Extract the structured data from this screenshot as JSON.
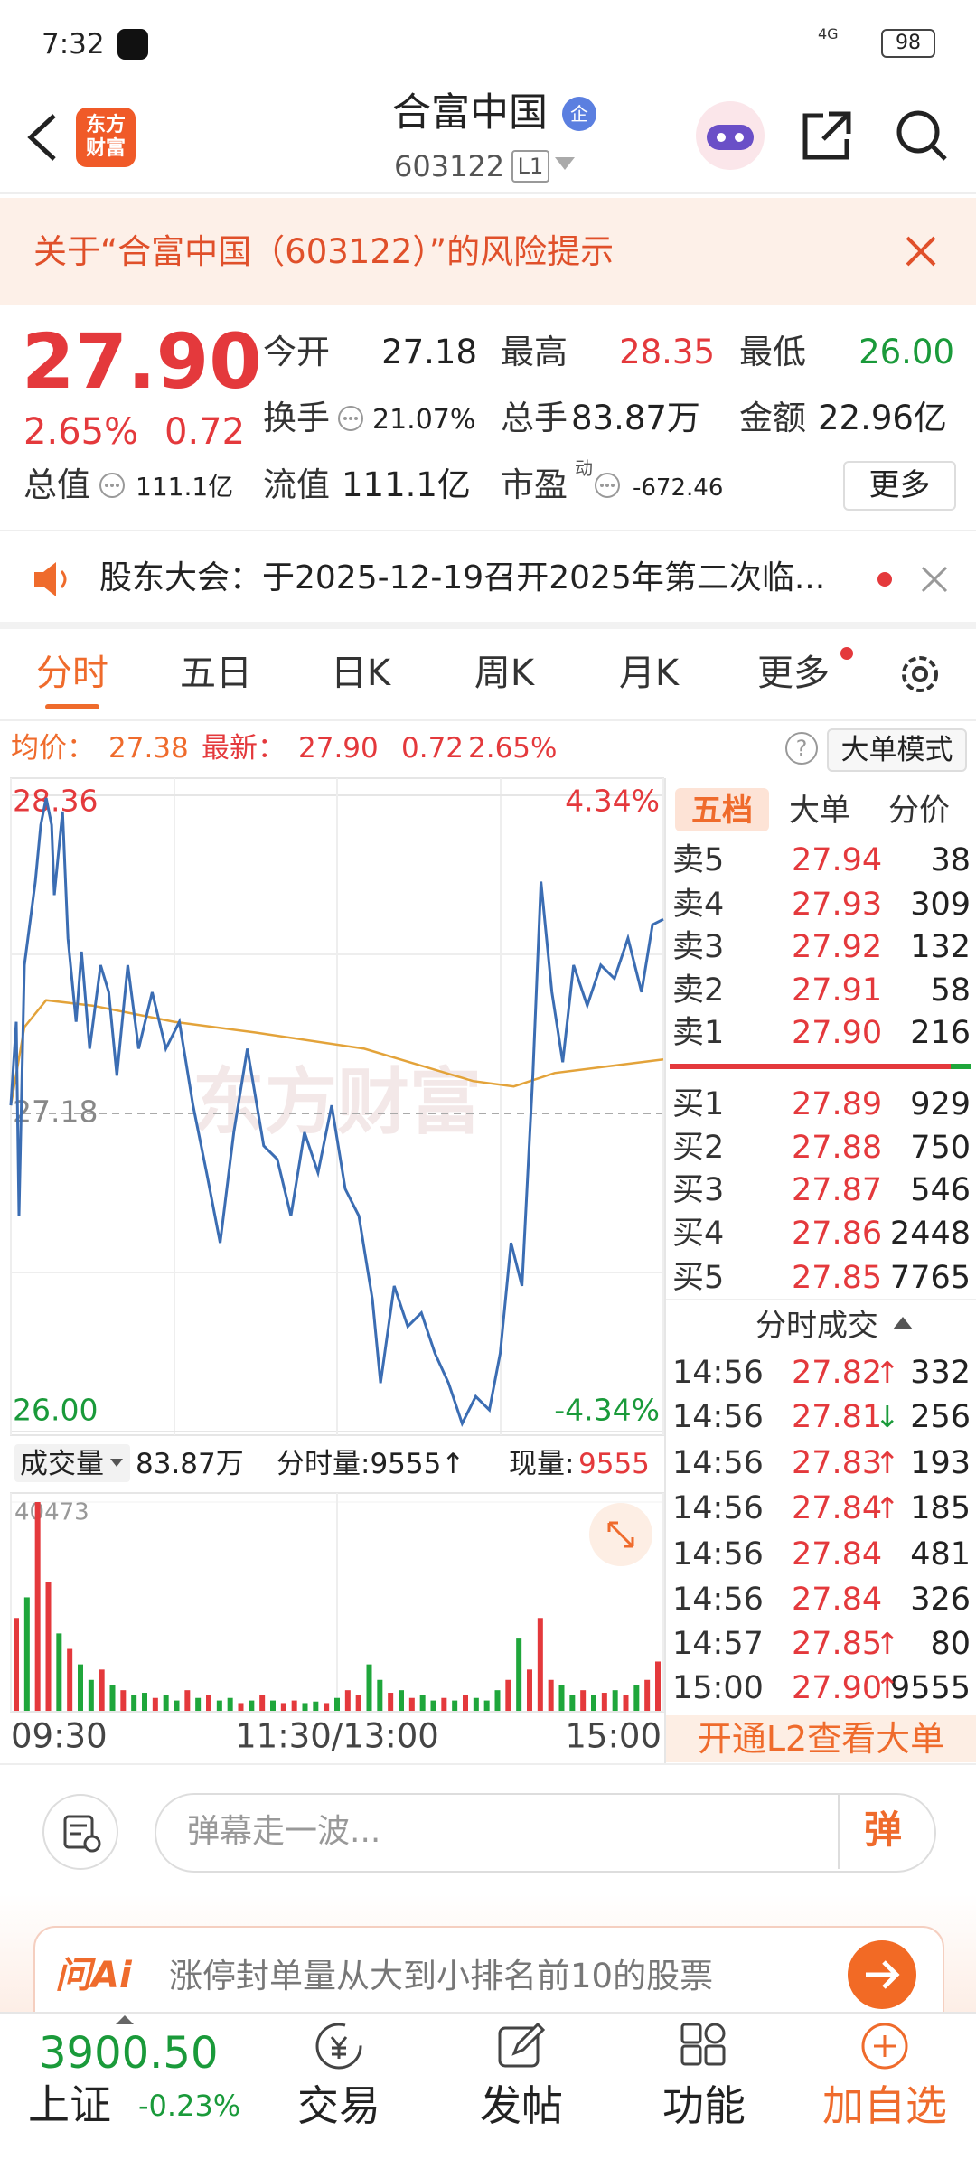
{
  "status_bar": {
    "time": "7:32",
    "network": "4G",
    "battery": "98"
  },
  "header": {
    "logo": [
      "东方",
      "财富"
    ],
    "title": "合富中国",
    "badge": "企",
    "code": "603122",
    "level": "L1"
  },
  "risk_banner": "关于“合富中国（603122）”的风险提示",
  "quote": {
    "price": "27.90",
    "change_pct": "2.65%",
    "change": "0.72",
    "stats": [
      {
        "label": "今开",
        "value": "27.18"
      },
      {
        "label": "最高",
        "value": "28.35"
      },
      {
        "label": "最低",
        "value": "26.00"
      },
      {
        "label": "换手",
        "value": "21.07%"
      },
      {
        "label": "总手",
        "value": "83.87万"
      },
      {
        "label": "金额",
        "value": "22.96亿"
      },
      {
        "label": "总值",
        "value": "111.1亿"
      },
      {
        "label": "流值",
        "value": "111.1亿"
      },
      {
        "label": "市盈",
        "sup": "动",
        "value": "-672.46"
      }
    ],
    "more": "更多"
  },
  "notice": "股东大会：于2025-12-19召开2025年第二次临...",
  "tabs": [
    "分时",
    "五日",
    "日K",
    "周K",
    "月K",
    "更多"
  ],
  "info_line": {
    "avg_label": "均价：",
    "avg": "27.38",
    "latest_label": "最新：",
    "latest": "27.90",
    "change": "0.72",
    "change_pct": "2.65%",
    "help": "?",
    "mode": "大单模式"
  },
  "chart_data": [
    {
      "type": "line",
      "watermark": "东方财富",
      "x": [
        0,
        2,
        3,
        5,
        9,
        11,
        13,
        15,
        16,
        19,
        21,
        24,
        26,
        29,
        33,
        36,
        39,
        43,
        47,
        52,
        57,
        62,
        67,
        72,
        77,
        82,
        87,
        93,
        98,
        103,
        108,
        113,
        118,
        123,
        128,
        133,
        136,
        141,
        146,
        151,
        156,
        161,
        166,
        171,
        176,
        180,
        184,
        188,
        192,
        195,
        199,
        203,
        207,
        212,
        217,
        222,
        227,
        232,
        236,
        240
      ],
      "values": [
        27.21,
        27.52,
        26.8,
        27.73,
        28.04,
        28.25,
        28.35,
        28.25,
        27.99,
        28.3,
        27.83,
        27.52,
        27.78,
        27.42,
        27.73,
        27.63,
        27.32,
        27.73,
        27.42,
        27.63,
        27.42,
        27.52,
        27.21,
        26.96,
        26.7,
        27.11,
        27.42,
        27.06,
        27.01,
        26.8,
        27.11,
        26.96,
        27.21,
        26.9,
        26.8,
        26.49,
        26.18,
        26.54,
        26.39,
        26.44,
        26.29,
        26.18,
        26.03,
        26.13,
        26.08,
        26.29,
        26.7,
        26.54,
        27.32,
        28.04,
        27.63,
        27.37,
        27.73,
        27.58,
        27.73,
        27.68,
        27.83,
        27.63,
        27.88,
        27.9
      ],
      "color": "#3b6db3",
      "average": {
        "x": [
          0,
          5,
          13,
          30,
          60,
          90,
          130,
          150,
          170,
          185,
          200,
          240
        ],
        "values": [
          27.21,
          27.5,
          27.6,
          27.58,
          27.52,
          27.48,
          27.42,
          27.36,
          27.3,
          27.28,
          27.33,
          27.38
        ],
        "color": "#e3a33a"
      },
      "xlim": [
        0,
        240
      ],
      "ylim": [
        26.0,
        28.36
      ],
      "yticks": [
        {
          "value": 28.36,
          "label": "28.36"
        },
        {
          "value": 27.18,
          "label": "27.18"
        },
        {
          "value": 26.0,
          "label": "26.00"
        }
      ],
      "y2lim": [
        -4.34,
        4.34
      ],
      "y2ticks": [
        {
          "value": 4.34,
          "label": "4.34%"
        },
        {
          "value": -4.34,
          "label": "-4.34%"
        }
      ],
      "grid": true
    },
    {
      "type": "bar",
      "header": {
        "label": "成交量",
        "total": "83.87万",
        "minute_volume": "分时量:9555↑",
        "current_label": "现量:",
        "current": "9555"
      },
      "x": [
        0,
        4,
        8,
        12,
        16,
        20,
        24,
        28,
        32,
        36,
        40,
        44,
        48,
        52,
        56,
        60,
        64,
        68,
        72,
        76,
        80,
        84,
        88,
        92,
        96,
        100,
        104,
        108,
        112,
        116,
        120,
        124,
        128,
        132,
        136,
        140,
        144,
        148,
        152,
        156,
        160,
        164,
        168,
        172,
        176,
        180,
        184,
        188,
        192,
        196,
        200,
        204,
        208,
        212,
        216,
        220,
        224,
        228,
        232,
        236,
        240
      ],
      "values": [
        18000,
        22000,
        40473,
        25000,
        15000,
        12000,
        9000,
        6000,
        8000,
        5000,
        4000,
        3000,
        3500,
        2500,
        3000,
        2000,
        4000,
        2500,
        3000,
        2000,
        2500,
        1500,
        2000,
        3000,
        2000,
        1500,
        2000,
        1500,
        1800,
        1500,
        2500,
        4000,
        3000,
        9000,
        6000,
        3500,
        4000,
        2500,
        3000,
        2000,
        2500,
        2000,
        3000,
        2500,
        2000,
        4000,
        6000,
        14000,
        8000,
        18000,
        6000,
        5000,
        3000,
        4000,
        3000,
        3500,
        4000,
        3000,
        5000,
        6000,
        9555
      ],
      "colors": [
        "#e4393c",
        "#1fa63b",
        "#e4393c",
        "#e4393c",
        "#1fa63b",
        "#e4393c",
        "#1fa63b",
        "#1fa63b",
        "#e4393c",
        "#1fa63b",
        "#e4393c",
        "#1fa63b",
        "#1fa63b",
        "#e4393c",
        "#1fa63b",
        "#1fa63b",
        "#e4393c",
        "#1fa63b",
        "#e4393c",
        "#1fa63b",
        "#1fa63b",
        "#e4393c",
        "#1fa63b",
        "#e4393c",
        "#1fa63b",
        "#e4393c",
        "#e4393c",
        "#1fa63b",
        "#1fa63b",
        "#e4393c",
        "#1fa63b",
        "#e4393c",
        "#e4393c",
        "#1fa63b",
        "#1fa63b",
        "#e4393c",
        "#1fa63b",
        "#e4393c",
        "#1fa63b",
        "#1fa63b",
        "#e4393c",
        "#1fa63b",
        "#e4393c",
        "#1fa63b",
        "#1fa63b",
        "#1fa63b",
        "#e4393c",
        "#1fa63b",
        "#e4393c",
        "#e4393c",
        "#e4393c",
        "#1fa63b",
        "#1fa63b",
        "#e4393c",
        "#1fa63b",
        "#e4393c",
        "#1fa63b",
        "#e4393c",
        "#1fa63b",
        "#e4393c",
        "#e4393c"
      ],
      "xlim": [
        0,
        240
      ],
      "ylim": [
        0,
        40473
      ],
      "yticks": [
        40473
      ],
      "xticks": [
        {
          "value": 0,
          "label": "09:30"
        },
        {
          "value": 120,
          "label": "11:30/13:00"
        },
        {
          "value": 240,
          "label": "15:00"
        }
      ]
    }
  ],
  "order_book": {
    "tabs": [
      "五档",
      "大单",
      "分价"
    ],
    "asks": [
      {
        "label": "卖5",
        "price": "27.94",
        "volume": "38"
      },
      {
        "label": "卖4",
        "price": "27.93",
        "volume": "309"
      },
      {
        "label": "卖3",
        "price": "27.92",
        "volume": "132"
      },
      {
        "label": "卖2",
        "price": "27.91",
        "volume": "58"
      },
      {
        "label": "卖1",
        "price": "27.90",
        "volume": "216"
      }
    ],
    "bids": [
      {
        "label": "买1",
        "price": "27.89",
        "volume": "929"
      },
      {
        "label": "买2",
        "price": "27.88",
        "volume": "750"
      },
      {
        "label": "买3",
        "price": "27.87",
        "volume": "546"
      },
      {
        "label": "买4",
        "price": "27.86",
        "volume": "2448"
      },
      {
        "label": "买5",
        "price": "27.85",
        "volume": "7765"
      }
    ],
    "trades_title": "分时成交",
    "trades": [
      {
        "time": "14:56",
        "price": "27.82",
        "arrow": "↑",
        "volume": "332"
      },
      {
        "time": "14:56",
        "price": "27.81",
        "arrow": "↓",
        "volume": "256"
      },
      {
        "time": "14:56",
        "price": "27.83",
        "arrow": "↑",
        "volume": "193"
      },
      {
        "time": "14:56",
        "price": "27.84",
        "arrow": "↑",
        "volume": "185"
      },
      {
        "time": "14:56",
        "price": "27.84",
        "volume": "481"
      },
      {
        "time": "14:56",
        "price": "27.84",
        "volume": "326"
      },
      {
        "time": "14:57",
        "price": "27.85",
        "arrow": "↑",
        "volume": "80"
      },
      {
        "time": "15:00",
        "price": "27.90",
        "arrow": "↑",
        "volume": "9555"
      }
    ],
    "l2_promo": "开通L2查看大单"
  },
  "comment_bar": {
    "placeholder": "弹幕走一波...",
    "button": "弹"
  },
  "ai_banner": {
    "logo": "问Ai",
    "text": "涨停封单量从大到小排名前10的股票"
  },
  "bottom_nav": {
    "index_value": "3900.50",
    "index_name": "上证",
    "index_change": "-0.23%",
    "items": [
      "交易",
      "发帖",
      "功能",
      "加自选"
    ]
  }
}
